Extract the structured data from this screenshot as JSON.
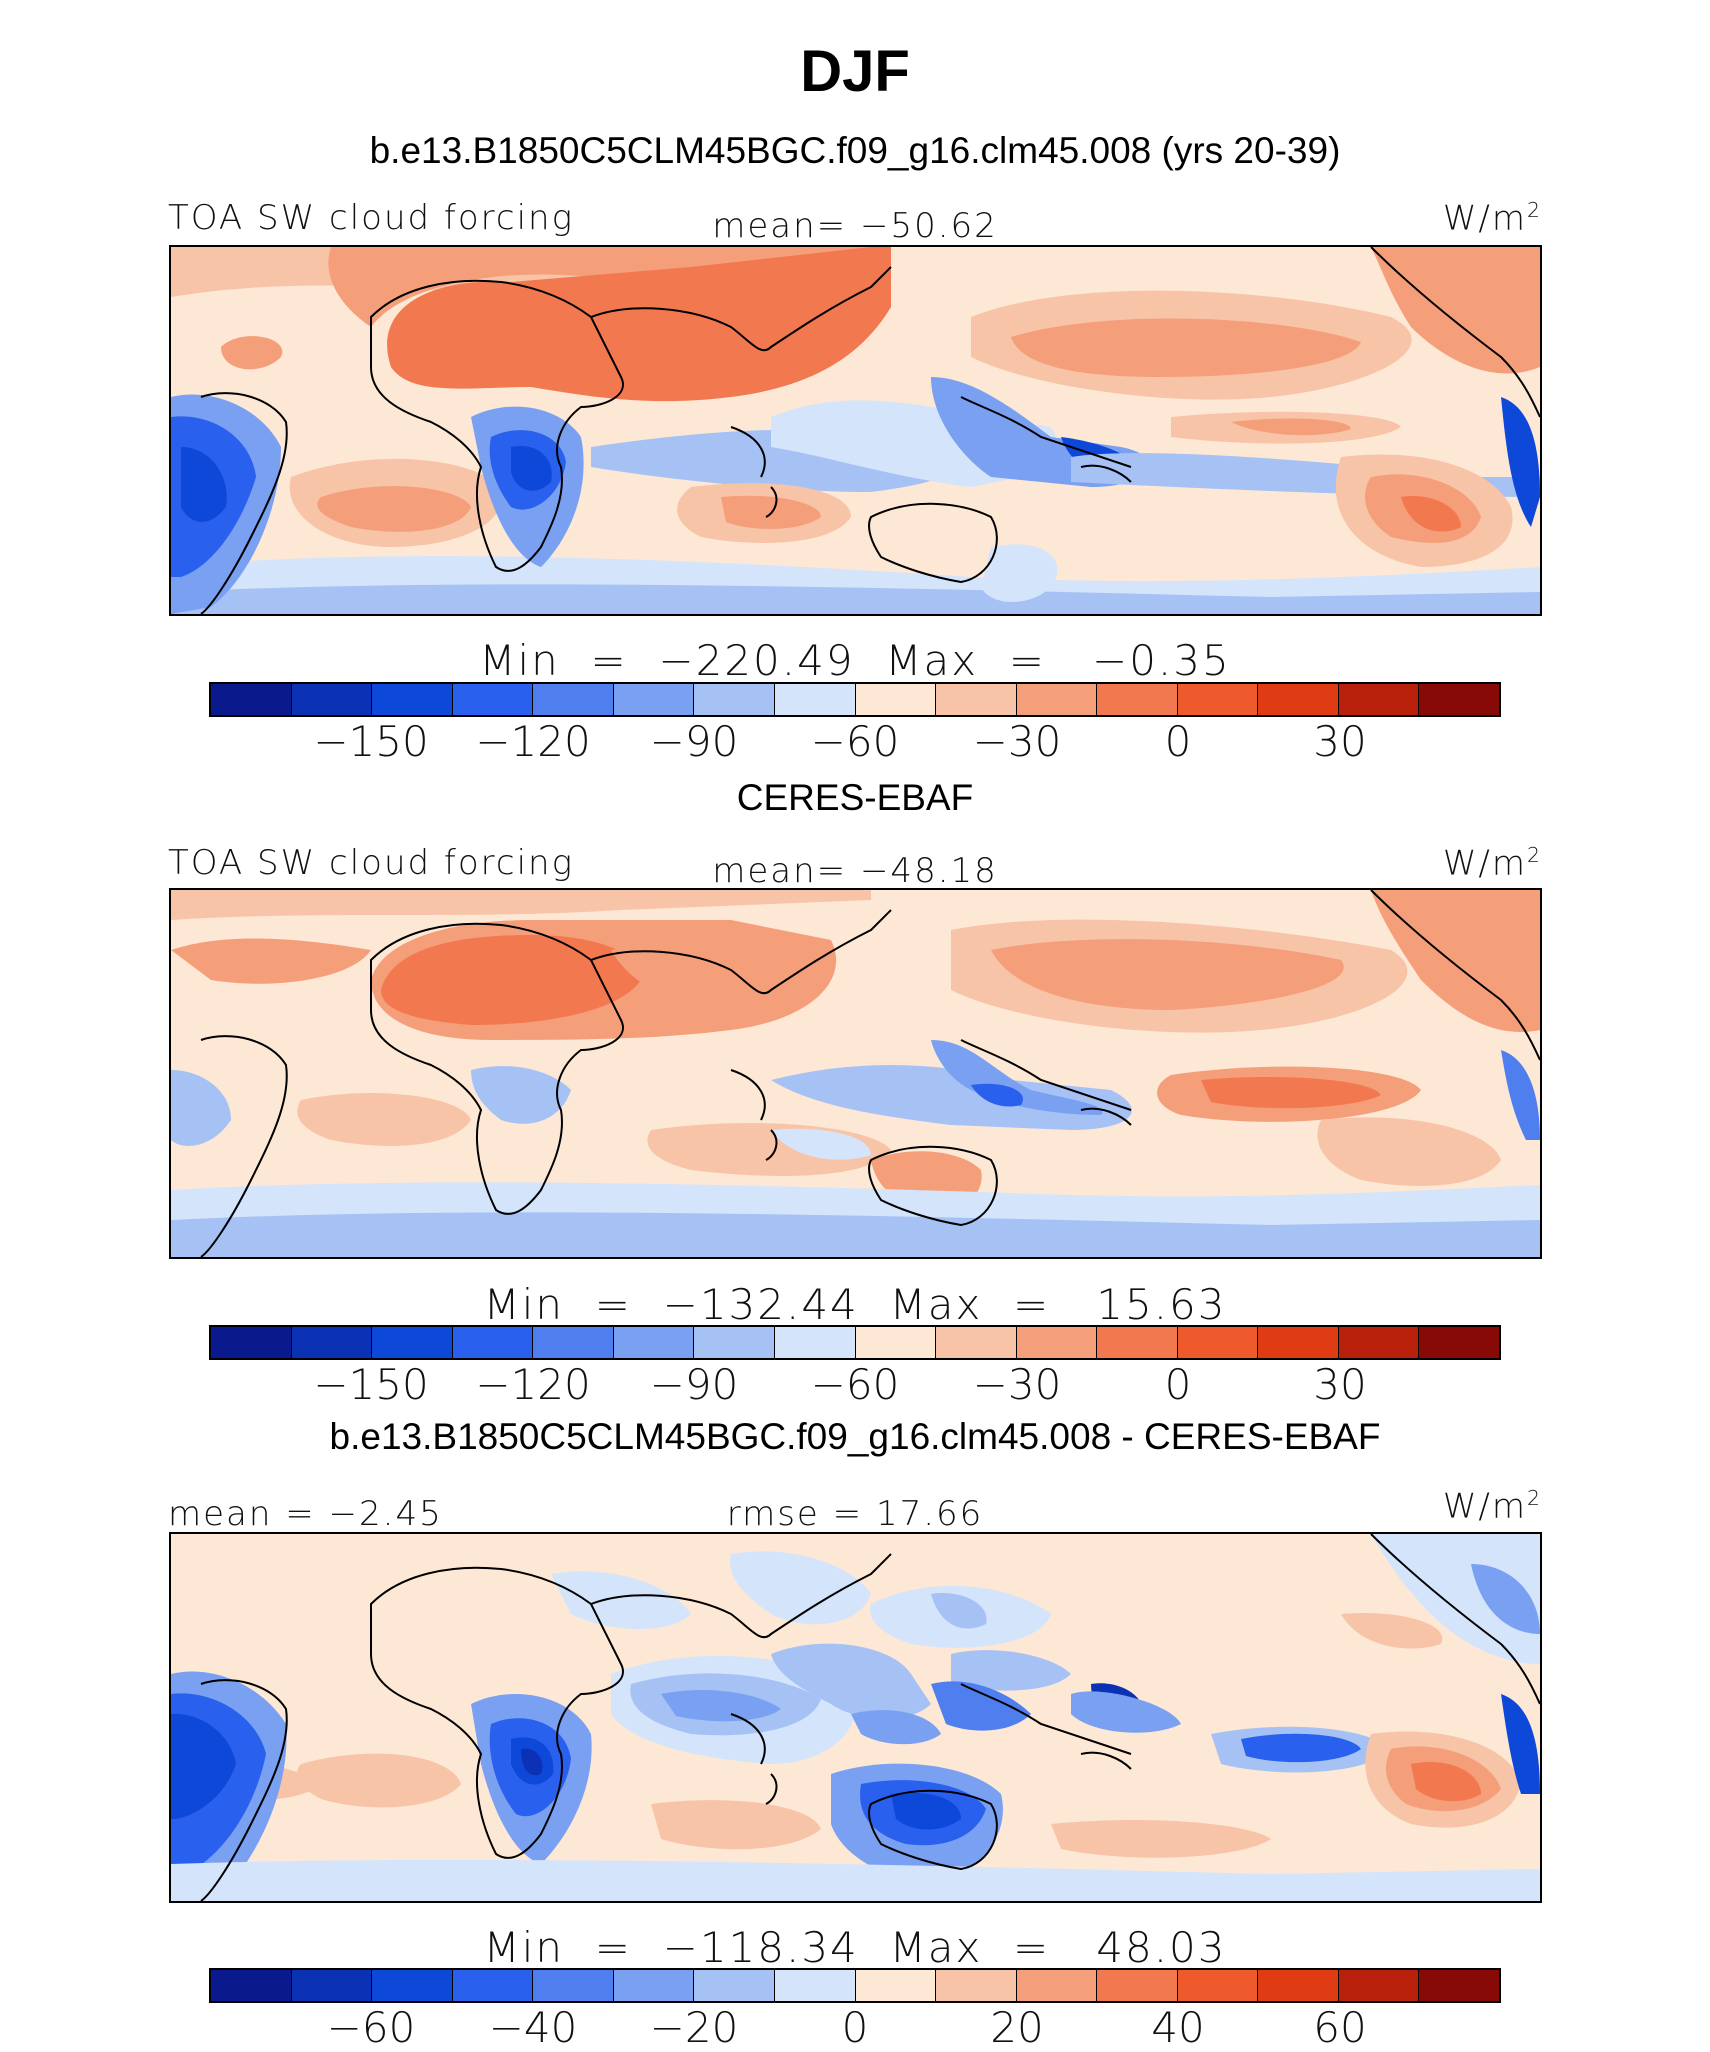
{
  "title": "DJF",
  "palette": [
    "#0a1a8c",
    "#0b32b4",
    "#0e48d8",
    "#2a60ee",
    "#4f7fef",
    "#7aa0f1",
    "#a6c2f5",
    "#d4e4fb",
    "#fde8d6",
    "#f8c4a8",
    "#f59e7a",
    "#f2784f",
    "#ee5a2c",
    "#e03c14",
    "#b8200c",
    "#880a06"
  ],
  "panels": [
    {
      "subtitle": "b.e13.B1850C5CLM45BGC.f09_g16.clm45.008 (yrs 20-39)",
      "left_label": "TOA SW cloud forcing",
      "center_label": "mean= −50.62",
      "units": "W/m",
      "units_sup": "2",
      "minmax": "Min  =  −220.49  Max  =   −0.35",
      "ticks": [
        "−150",
        "−120",
        "−90",
        "−60",
        "−30",
        "0",
        "30"
      ]
    },
    {
      "subtitle": "CERES-EBAF",
      "left_label": "TOA SW cloud forcing",
      "center_label": "mean= −48.18",
      "units": "W/m",
      "units_sup": "2",
      "minmax": "Min  =  −132.44  Max  =   15.63",
      "ticks": [
        "−150",
        "−120",
        "−90",
        "−60",
        "−30",
        "0",
        "30"
      ]
    },
    {
      "subtitle": "b.e13.B1850C5CLM45BGC.f09_g16.clm45.008 - CERES-EBAF",
      "left_label": "mean  =   −2.45",
      "center_label": "rmse  =   17.66",
      "units": "W/m",
      "units_sup": "2",
      "minmax": "Min  =  −118.34  Max  =   48.03",
      "ticks": [
        "−60",
        "−40",
        "−20",
        "0",
        "20",
        "40",
        "60"
      ]
    }
  ]
}
